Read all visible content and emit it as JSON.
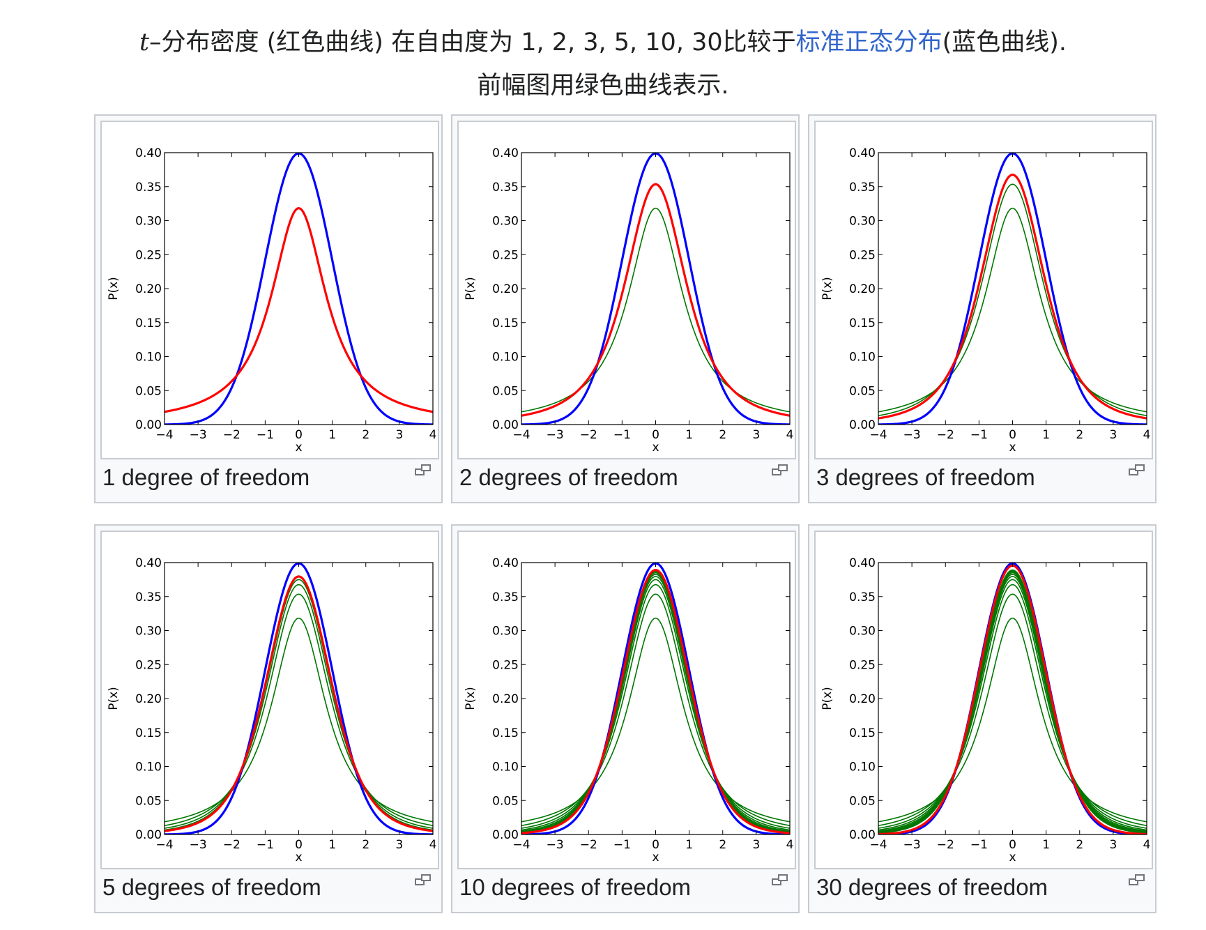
{
  "caption": {
    "line1_italic": "t",
    "line1_part1": "–分布密度 (红色曲线) 在自由度为 1, 2, 3, 5, 10, 30比较于",
    "line1_link": "标准正态分布",
    "line1_part2": "(蓝色曲线).",
    "line2": "前幅图用绿色曲线表示."
  },
  "colors": {
    "normal_curve": "#0000ff",
    "t_curve": "#ff0000",
    "previous_curves": "#007700",
    "link": "#3366cc"
  },
  "icons": {
    "enlarge": "magnify-clip-icon"
  },
  "chart_data": [
    {
      "type": "line",
      "caption": "1 degree of freedom",
      "xlabel": "x",
      "ylabel": "P(x)",
      "xlim": [
        -4,
        4
      ],
      "ylim": [
        0,
        0.4
      ],
      "xticks": [
        -4,
        -3,
        -2,
        -1,
        0,
        1,
        2,
        3,
        4
      ],
      "xtick_labels": [
        "−4",
        "−3",
        "−2",
        "−1",
        "0",
        "1",
        "2",
        "3",
        "4"
      ],
      "yticks": [
        "0.00",
        "0.05",
        "0.10",
        "0.15",
        "0.20",
        "0.25",
        "0.30",
        "0.35",
        "0.40"
      ],
      "grid": false,
      "series": [
        {
          "role": "normal",
          "color": "#0000ff",
          "nu": null
        },
        {
          "role": "t",
          "color": "#ff0000",
          "nu": 1
        }
      ]
    },
    {
      "type": "line",
      "caption": "2 degrees of freedom",
      "xlabel": "x",
      "ylabel": "P(x)",
      "xlim": [
        -4,
        4
      ],
      "ylim": [
        0,
        0.4
      ],
      "xticks": [
        -4,
        -3,
        -2,
        -1,
        0,
        1,
        2,
        3,
        4
      ],
      "xtick_labels": [
        "−4",
        "−3",
        "−2",
        "−1",
        "0",
        "1",
        "2",
        "3",
        "4"
      ],
      "yticks": [
        "0.00",
        "0.05",
        "0.10",
        "0.15",
        "0.20",
        "0.25",
        "0.30",
        "0.35",
        "0.40"
      ],
      "grid": false,
      "series": [
        {
          "role": "previous",
          "color": "#007700",
          "nu": 1
        },
        {
          "role": "normal",
          "color": "#0000ff",
          "nu": null
        },
        {
          "role": "t",
          "color": "#ff0000",
          "nu": 2
        }
      ]
    },
    {
      "type": "line",
      "caption": "3 degrees of freedom",
      "xlabel": "x",
      "ylabel": "P(x)",
      "xlim": [
        -4,
        4
      ],
      "ylim": [
        0,
        0.4
      ],
      "xticks": [
        -4,
        -3,
        -2,
        -1,
        0,
        1,
        2,
        3,
        4
      ],
      "xtick_labels": [
        "−4",
        "−3",
        "−2",
        "−1",
        "0",
        "1",
        "2",
        "3",
        "4"
      ],
      "yticks": [
        "0.00",
        "0.05",
        "0.10",
        "0.15",
        "0.20",
        "0.25",
        "0.30",
        "0.35",
        "0.40"
      ],
      "grid": false,
      "series": [
        {
          "role": "previous",
          "color": "#007700",
          "nu": 1
        },
        {
          "role": "previous",
          "color": "#007700",
          "nu": 2
        },
        {
          "role": "normal",
          "color": "#0000ff",
          "nu": null
        },
        {
          "role": "t",
          "color": "#ff0000",
          "nu": 3
        }
      ]
    },
    {
      "type": "line",
      "caption": "5 degrees of freedom",
      "xlabel": "x",
      "ylabel": "P(x)",
      "xlim": [
        -4,
        4
      ],
      "ylim": [
        0,
        0.4
      ],
      "xticks": [
        -4,
        -3,
        -2,
        -1,
        0,
        1,
        2,
        3,
        4
      ],
      "xtick_labels": [
        "−4",
        "−3",
        "−2",
        "−1",
        "0",
        "1",
        "2",
        "3",
        "4"
      ],
      "yticks": [
        "0.00",
        "0.05",
        "0.10",
        "0.15",
        "0.20",
        "0.25",
        "0.30",
        "0.35",
        "0.40"
      ],
      "grid": false,
      "series": [
        {
          "role": "previous",
          "color": "#007700",
          "nu": 1
        },
        {
          "role": "previous",
          "color": "#007700",
          "nu": 2
        },
        {
          "role": "previous",
          "color": "#007700",
          "nu": 3
        },
        {
          "role": "previous",
          "color": "#007700",
          "nu": 4
        },
        {
          "role": "normal",
          "color": "#0000ff",
          "nu": null
        },
        {
          "role": "t",
          "color": "#ff0000",
          "nu": 5
        }
      ]
    },
    {
      "type": "line",
      "caption": "10 degrees of freedom",
      "xlabel": "x",
      "ylabel": "P(x)",
      "xlim": [
        -4,
        4
      ],
      "ylim": [
        0,
        0.4
      ],
      "xticks": [
        -4,
        -3,
        -2,
        -1,
        0,
        1,
        2,
        3,
        4
      ],
      "xtick_labels": [
        "−4",
        "−3",
        "−2",
        "−1",
        "0",
        "1",
        "2",
        "3",
        "4"
      ],
      "yticks": [
        "0.00",
        "0.05",
        "0.10",
        "0.15",
        "0.20",
        "0.25",
        "0.30",
        "0.35",
        "0.40"
      ],
      "grid": false,
      "series": [
        {
          "role": "previous",
          "color": "#007700",
          "nu": 1
        },
        {
          "role": "previous",
          "color": "#007700",
          "nu": 2
        },
        {
          "role": "previous",
          "color": "#007700",
          "nu": 3
        },
        {
          "role": "previous",
          "color": "#007700",
          "nu": 4
        },
        {
          "role": "previous",
          "color": "#007700",
          "nu": 5
        },
        {
          "role": "previous",
          "color": "#007700",
          "nu": 6
        },
        {
          "role": "previous",
          "color": "#007700",
          "nu": 7
        },
        {
          "role": "previous",
          "color": "#007700",
          "nu": 8
        },
        {
          "role": "previous",
          "color": "#007700",
          "nu": 9
        },
        {
          "role": "normal",
          "color": "#0000ff",
          "nu": null
        },
        {
          "role": "t",
          "color": "#ff0000",
          "nu": 10
        }
      ]
    },
    {
      "type": "line",
      "caption": "30 degrees of freedom",
      "xlabel": "x",
      "ylabel": "P(x)",
      "xlim": [
        -4,
        4
      ],
      "ylim": [
        0,
        0.4
      ],
      "xticks": [
        -4,
        -3,
        -2,
        -1,
        0,
        1,
        2,
        3,
        4
      ],
      "xtick_labels": [
        "−4",
        "−3",
        "−2",
        "−1",
        "0",
        "1",
        "2",
        "3",
        "4"
      ],
      "yticks": [
        "0.00",
        "0.05",
        "0.10",
        "0.15",
        "0.20",
        "0.25",
        "0.30",
        "0.35",
        "0.40"
      ],
      "grid": false,
      "series": [
        {
          "role": "previous",
          "color": "#007700",
          "nu": 1
        },
        {
          "role": "previous",
          "color": "#007700",
          "nu": 2
        },
        {
          "role": "previous",
          "color": "#007700",
          "nu": 3
        },
        {
          "role": "previous",
          "color": "#007700",
          "nu": 4
        },
        {
          "role": "previous",
          "color": "#007700",
          "nu": 5
        },
        {
          "role": "previous",
          "color": "#007700",
          "nu": 6
        },
        {
          "role": "previous",
          "color": "#007700",
          "nu": 7
        },
        {
          "role": "previous",
          "color": "#007700",
          "nu": 8
        },
        {
          "role": "previous",
          "color": "#007700",
          "nu": 9
        },
        {
          "role": "previous",
          "color": "#007700",
          "nu": 10
        },
        {
          "role": "normal",
          "color": "#0000ff",
          "nu": null
        },
        {
          "role": "t",
          "color": "#ff0000",
          "nu": 30
        }
      ]
    }
  ]
}
